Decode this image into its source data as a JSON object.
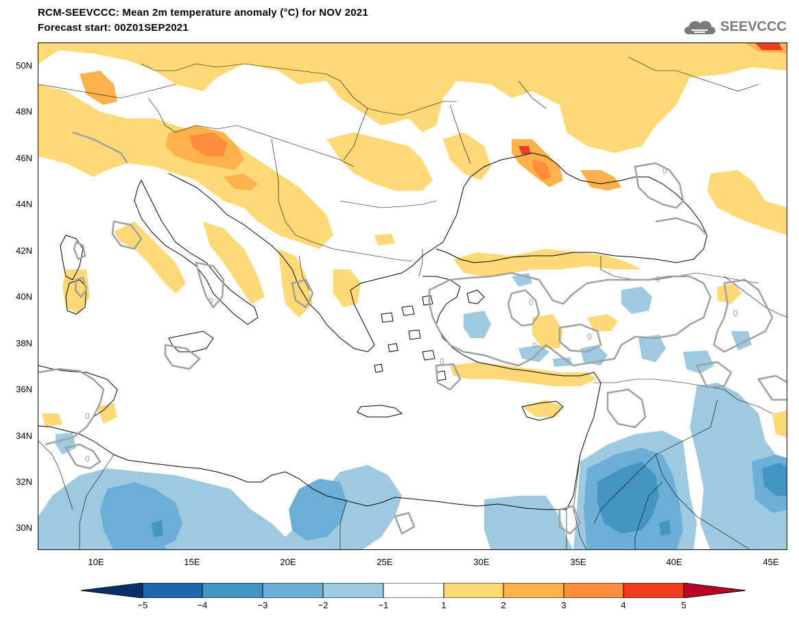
{
  "header": {
    "title": "RCM-SEEVCCC: Mean 2m temperature anomaly (°C) for NOV 2021",
    "subtitle": "Forecast start: 00Z01SEP2021",
    "logo_text": "SEEVCCC"
  },
  "map": {
    "region": "Eastern Mediterranean / Southeast Europe",
    "lat_labels": [
      "50N",
      "48N",
      "46N",
      "44N",
      "42N",
      "40N",
      "38N",
      "36N",
      "34N",
      "32N",
      "30N"
    ],
    "lon_labels": [
      "10E",
      "15E",
      "20E",
      "25E",
      "30E",
      "35E",
      "40E",
      "45E"
    ],
    "contour_label": "0"
  },
  "colorbar": {
    "labels": [
      "−5",
      "−4",
      "−3",
      "−2",
      "−1",
      "1",
      "2",
      "3",
      "4",
      "5"
    ],
    "colors": [
      "#08306b",
      "#2166ac",
      "#4393c3",
      "#6baed6",
      "#9ecae1",
      "#ffffff",
      "#fed976",
      "#feb24c",
      "#fd8d3c",
      "#f03b20",
      "#bd0026"
    ]
  }
}
